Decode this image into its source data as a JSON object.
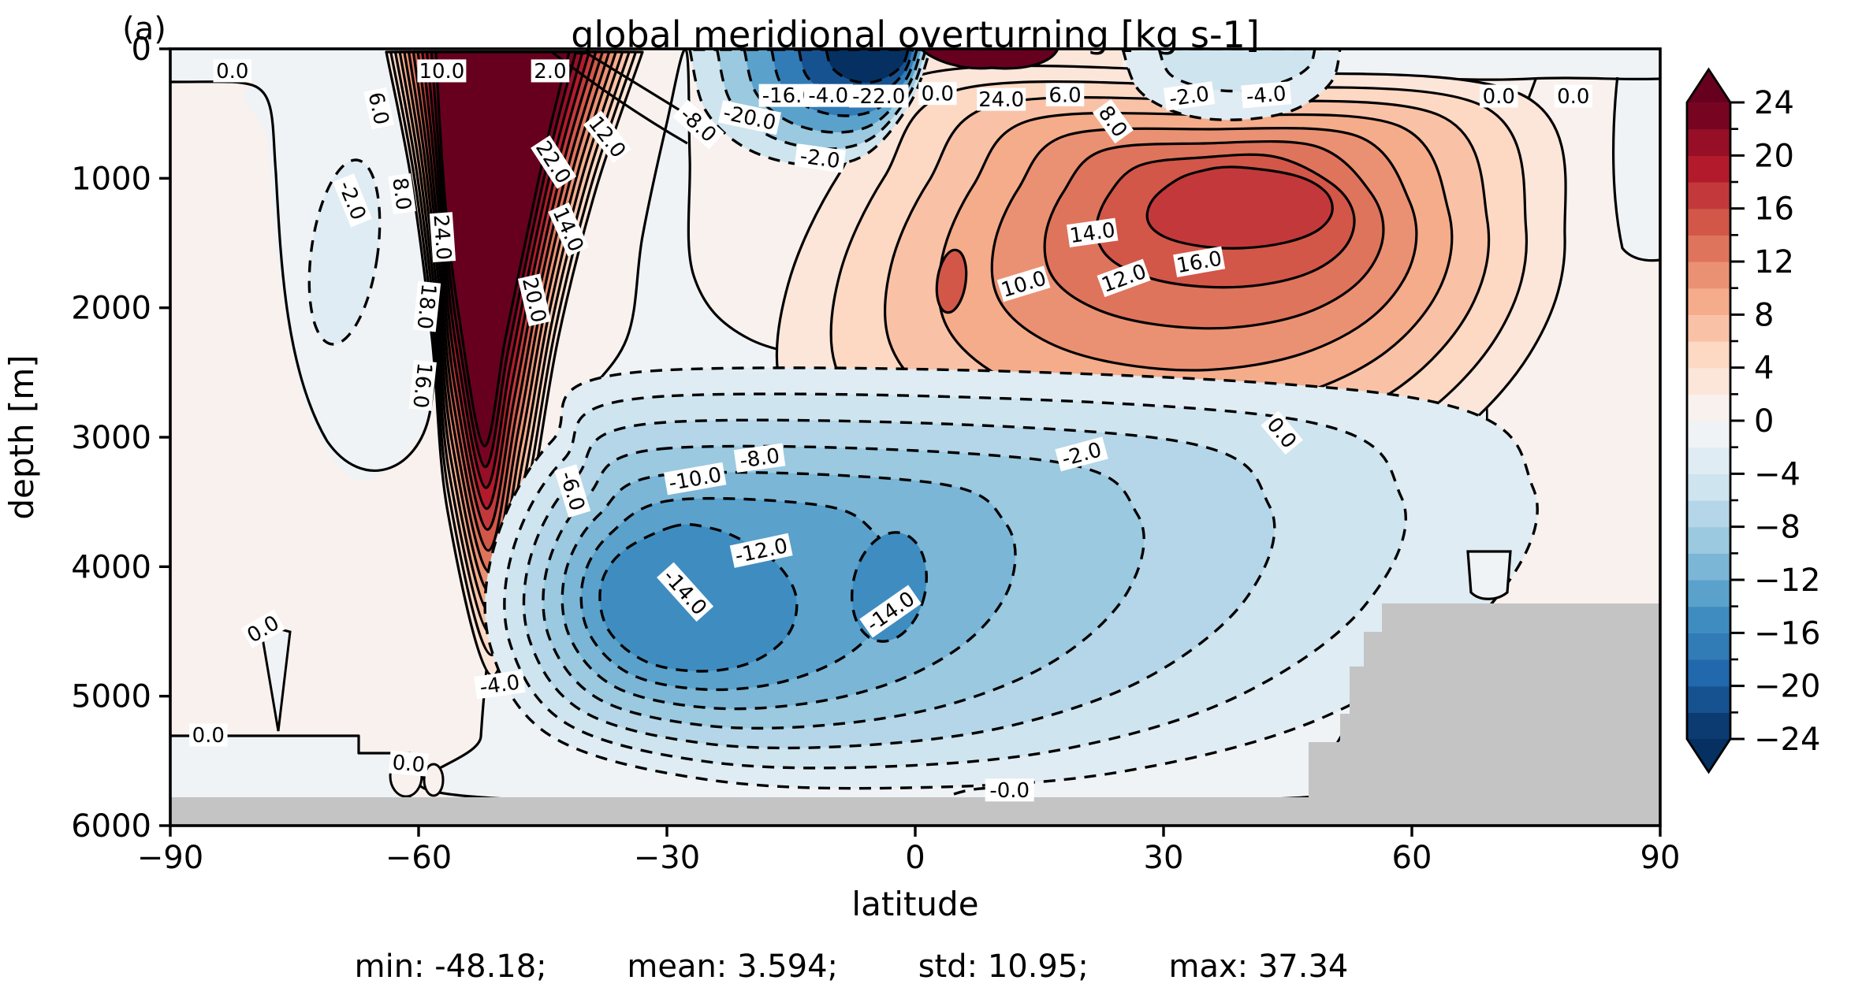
{
  "figure": {
    "panel_label": "(a)",
    "title": "global meridional overturning [kg s-1]",
    "xlabel": "latitude",
    "ylabel": "depth [m]"
  },
  "stats": {
    "min_label": "min:",
    "min_value": "-48.18",
    "mean_label": "mean:",
    "mean_value": "3.594",
    "std_label": "std:",
    "std_value": "10.95",
    "max_label": "max:",
    "max_value": "37.34",
    "separator": ";"
  },
  "chart_data": {
    "type": "filled_contour",
    "title": "global meridional overturning [kg s-1]",
    "xlabel": "latitude",
    "ylabel": "depth [m]",
    "xlim": [
      -90,
      90
    ],
    "ylim": [
      6000,
      0
    ],
    "xticks": [
      -90,
      -60,
      -30,
      0,
      30,
      60,
      90
    ],
    "yticks": [
      0,
      1000,
      2000,
      3000,
      4000,
      5000,
      6000
    ],
    "grid": false,
    "contour_levels": {
      "min": -24,
      "max": 24,
      "step": 2
    },
    "positive_contour_style": "solid",
    "negative_contour_style": "dashed",
    "colormap": "RdBu_r",
    "colormap_anchors": [
      "#053061",
      "#2166ac",
      "#4393c3",
      "#92c5de",
      "#d1e5f0",
      "#f7f7f7",
      "#fddbc7",
      "#f4a582",
      "#d6604d",
      "#b2182b",
      "#67001f"
    ],
    "land_color": "#c4c4c4",
    "colorbar": {
      "position": "right",
      "major_ticks": [
        24,
        20,
        16,
        12,
        8,
        4,
        0,
        -4,
        -8,
        -12,
        -16,
        -20,
        -24
      ],
      "minor_tick_step": 2,
      "extend": "both"
    },
    "stats": {
      "min": -48.18,
      "mean": 3.594,
      "std": 10.95,
      "max": 37.34
    },
    "features": [
      {
        "name": "southern-positive-cell",
        "sign": "positive",
        "lat_range": [
          -62,
          -38
        ],
        "depth_range": [
          0,
          4500
        ],
        "peak_value": ">24"
      },
      {
        "name": "northern-deep-positive-cell",
        "sign": "positive",
        "center_lat": 35,
        "center_depth": 1000,
        "peak_value": ">16"
      },
      {
        "name": "abyssal-negative-cell",
        "sign": "negative",
        "lat_range": [
          -45,
          45
        ],
        "depth_range": [
          2100,
          5800
        ],
        "peak_value": "<-14"
      },
      {
        "name": "equatorial-surface-negative-cell",
        "sign": "negative",
        "lat_range": [
          -27,
          -2
        ],
        "depth_range": [
          0,
          900
        ],
        "peak_value": "<-24"
      },
      {
        "name": "subtropical-surface-negative-band",
        "sign": "negative",
        "lat_range": [
          25,
          50
        ],
        "depth_range": [
          0,
          550
        ],
        "peak_value": "<-4"
      },
      {
        "name": "bathymetry",
        "description": "gray sea floor, full width below ~5780 m, rising to ~4280 m north of 55N"
      }
    ],
    "contour_labels": [
      {
        "v": "0.0",
        "lat": -82.5,
        "depth": 170,
        "rot": 0
      },
      {
        "v": "10.0",
        "lat": -57.2,
        "depth": 170,
        "rot": 0
      },
      {
        "v": "2.0",
        "lat": -44.1,
        "depth": 170,
        "rot": 0
      },
      {
        "v": "6.0",
        "lat": -64.8,
        "depth": 460,
        "rot": 78
      },
      {
        "v": "12.0",
        "lat": -37.2,
        "depth": 680,
        "rot": 52
      },
      {
        "v": "22.0",
        "lat": -43.7,
        "depth": 875,
        "rot": 57
      },
      {
        "v": "8.0",
        "lat": -62.0,
        "depth": 1120,
        "rot": 82
      },
      {
        "v": "-2.0",
        "lat": -68.0,
        "depth": 1170,
        "rot": 68
      },
      {
        "v": "14.0",
        "lat": -41.9,
        "depth": 1395,
        "rot": 66
      },
      {
        "v": "24.0",
        "lat": -57.1,
        "depth": 1455,
        "rot": 86
      },
      {
        "v": "20.0",
        "lat": -46.0,
        "depth": 1940,
        "rot": 77
      },
      {
        "v": "18.0",
        "lat": -59.0,
        "depth": 1990,
        "rot": 96
      },
      {
        "v": "16.0",
        "lat": -59.5,
        "depth": 2600,
        "rot": 96
      },
      {
        "v": "-8.0",
        "lat": -26.2,
        "depth": 585,
        "rot": 42
      },
      {
        "v": "-20.0",
        "lat": -20.0,
        "depth": 530,
        "rot": 12
      },
      {
        "v": "-16.0",
        "lat": -15.3,
        "depth": 360,
        "rot": 0
      },
      {
        "v": "-4.0",
        "lat": -10.5,
        "depth": 360,
        "rot": 0
      },
      {
        "v": "-2.0",
        "lat": -11.5,
        "depth": 845,
        "rot": 8
      },
      {
        "v": "-22.0",
        "lat": -4.4,
        "depth": 365,
        "rot": 0
      },
      {
        "v": "0.0",
        "lat": 2.7,
        "depth": 345,
        "rot": 0
      },
      {
        "v": "24.0",
        "lat": 10.4,
        "depth": 390,
        "rot": 0
      },
      {
        "v": "6.0",
        "lat": 18.1,
        "depth": 355,
        "rot": 0
      },
      {
        "v": "8.0",
        "lat": 23.9,
        "depth": 560,
        "rot": 54
      },
      {
        "v": "-2.0",
        "lat": 33.1,
        "depth": 365,
        "rot": -8
      },
      {
        "v": "-4.0",
        "lat": 42.4,
        "depth": 355,
        "rot": -5
      },
      {
        "v": "0.0",
        "lat": 70.5,
        "depth": 365,
        "rot": 0
      },
      {
        "v": "0.0",
        "lat": 79.5,
        "depth": 365,
        "rot": 0
      },
      {
        "v": "14.0",
        "lat": 21.4,
        "depth": 1420,
        "rot": -8
      },
      {
        "v": "16.0",
        "lat": 34.3,
        "depth": 1645,
        "rot": -10
      },
      {
        "v": "10.0",
        "lat": 13.1,
        "depth": 1815,
        "rot": -17
      },
      {
        "v": "12.0",
        "lat": 25.2,
        "depth": 1770,
        "rot": -20
      },
      {
        "v": "-6.0",
        "lat": -41.4,
        "depth": 3415,
        "rot": 73
      },
      {
        "v": "-10.0",
        "lat": -26.6,
        "depth": 3320,
        "rot": -10
      },
      {
        "v": "-8.0",
        "lat": -18.8,
        "depth": 3160,
        "rot": -8
      },
      {
        "v": "-12.0",
        "lat": -18.6,
        "depth": 3875,
        "rot": -12
      },
      {
        "v": "-14.0",
        "lat": -27.8,
        "depth": 4195,
        "rot": 48
      },
      {
        "v": "-14.0",
        "lat": -3.0,
        "depth": 4345,
        "rot": -35
      },
      {
        "v": "-2.0",
        "lat": 20.1,
        "depth": 3130,
        "rot": -15
      },
      {
        "v": "0.0",
        "lat": 44.3,
        "depth": 2965,
        "rot": 50
      },
      {
        "v": "-4.0",
        "lat": -50.2,
        "depth": 4910,
        "rot": -8
      },
      {
        "v": "0.0",
        "lat": -78.8,
        "depth": 4480,
        "rot": -30
      },
      {
        "v": "0.0",
        "lat": -85.4,
        "depth": 5300,
        "rot": 0
      },
      {
        "v": "0.0",
        "lat": -61.2,
        "depth": 5520,
        "rot": 5
      },
      {
        "v": "-0.0",
        "lat": 11.4,
        "depth": 5725,
        "rot": 0
      }
    ]
  }
}
